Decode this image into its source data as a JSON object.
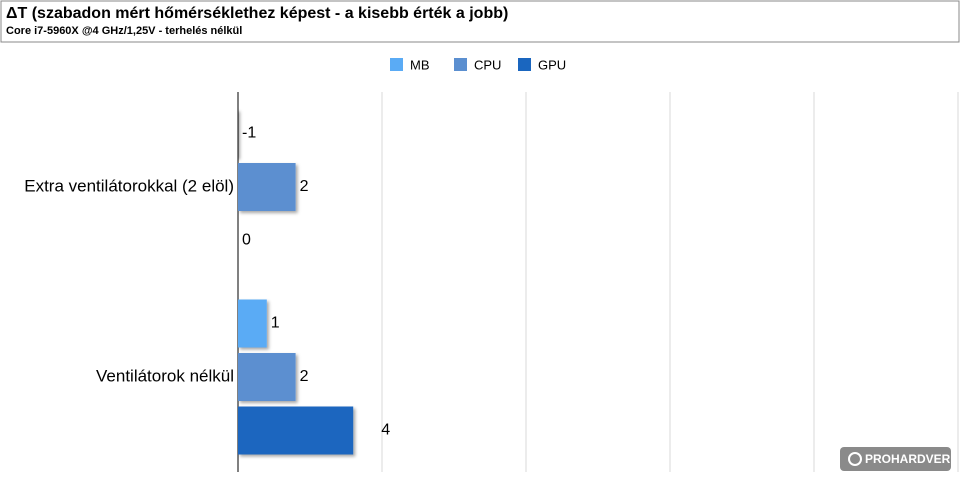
{
  "chart_data": {
    "type": "hbar",
    "title": "ΔT (szabadon mért hőmérséklethez képest - a kisebb érték a jobb)",
    "subtitle": "Core i7-5960X @4 GHz/1,25V - terhelés nélkül",
    "categories": [
      "Extra ventilátorokkal (2 elöl)",
      "Ventilátorok nélkül"
    ],
    "series": [
      {
        "name": "MB",
        "color": "#5aabf5",
        "values": [
          -1,
          1
        ]
      },
      {
        "name": "CPU",
        "color": "#5b8fd0",
        "values": [
          2,
          2
        ]
      },
      {
        "name": "GPU",
        "color": "#1a66bf",
        "values": [
          0,
          4
        ]
      }
    ],
    "xlim": [
      0,
      25
    ],
    "xticks": [
      0,
      5,
      10,
      15,
      20,
      25
    ],
    "grid": true,
    "legend": "top",
    "watermark": "PROHARDVER!"
  }
}
